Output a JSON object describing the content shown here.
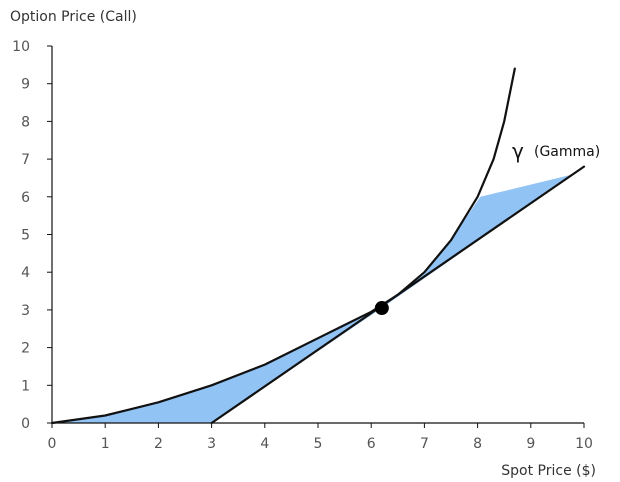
{
  "chart_data": {
    "type": "line",
    "ylabel": "Option Price (Call)",
    "xlabel": "Spot Price ($)",
    "xlim": [
      0,
      10
    ],
    "ylim": [
      0,
      10
    ],
    "xticks": [
      "0",
      "1",
      "2",
      "3",
      "4",
      "5",
      "6",
      "7",
      "8",
      "9",
      "10"
    ],
    "yticks": [
      "0",
      "1",
      "2",
      "3",
      "4",
      "5",
      "6",
      "7",
      "8",
      "9",
      "10"
    ],
    "grid": false,
    "annotation": {
      "symbol": "γ",
      "text": "(Gamma)"
    },
    "colors": {
      "curve": "#111111",
      "fill": "#92c3f5",
      "axis": "#111111",
      "point": "#000000"
    },
    "series": [
      {
        "kind": "convex-curve",
        "x": [
          0,
          1,
          2,
          3,
          4,
          5,
          5.5,
          6,
          6.5,
          7,
          7.5,
          8,
          8.3,
          8.5,
          8.6,
          8.7
        ],
        "y": [
          0,
          0.2,
          0.55,
          1.0,
          1.55,
          2.25,
          2.6,
          2.95,
          3.4,
          4.0,
          4.85,
          6.0,
          7.0,
          8.0,
          8.7,
          9.4
        ]
      },
      {
        "kind": "tangent-line",
        "x": [
          3,
          10
        ],
        "y": [
          0,
          6.8
        ]
      }
    ],
    "tangent_point": {
      "x": 6.2,
      "y": 3.05
    },
    "shaded_regions": [
      {
        "x": [
          0,
          3,
          6.2,
          5.5,
          5,
          4,
          3,
          2,
          1,
          0
        ],
        "y": [
          0,
          0,
          3.05,
          2.6,
          2.25,
          1.55,
          1.0,
          0.55,
          0.2,
          0
        ]
      },
      {
        "x": [
          6.2,
          9.8,
          8.05,
          7.5,
          7,
          6.5,
          6.2
        ],
        "y": [
          3.05,
          6.6,
          6.0,
          4.85,
          4.0,
          3.4,
          3.05
        ]
      }
    ]
  }
}
